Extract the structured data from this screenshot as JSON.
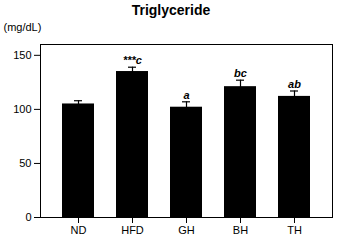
{
  "chart_data": {
    "type": "bar",
    "title": "Triglyceride",
    "ylabel": "(mg/dL)",
    "categories": [
      "ND",
      "HFD",
      "GH",
      "BH",
      "TH"
    ],
    "values": [
      105,
      135,
      102,
      121,
      112
    ],
    "errors": [
      3,
      4,
      5,
      6,
      5
    ],
    "annotations": [
      null,
      "***c",
      "a",
      "bc",
      "ab"
    ],
    "ylim": [
      0,
      160
    ],
    "yticks": [
      0,
      50,
      100,
      150
    ],
    "grid": false
  }
}
